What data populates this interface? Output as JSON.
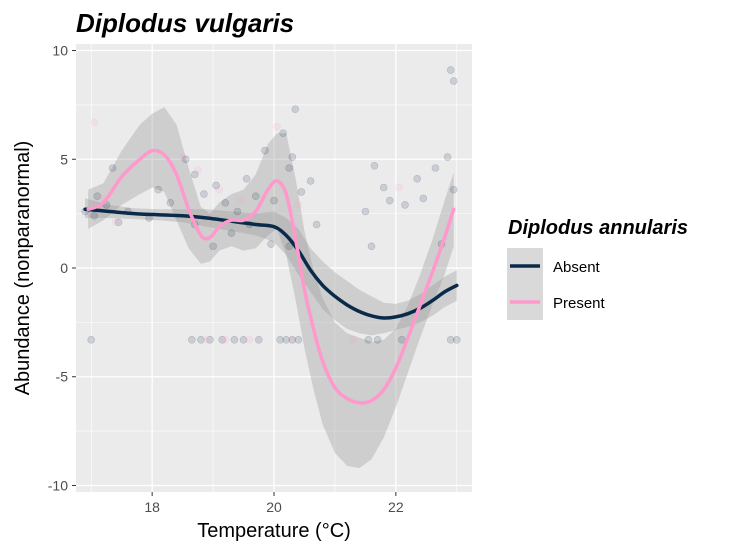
{
  "chart_data": {
    "type": "scatter",
    "title": "Diplodus vulgaris",
    "xlabel": "Temperature (°C)",
    "ylabel": "Abundance (nonparanormal)",
    "xlim": [
      16.75,
      23.25
    ],
    "ylim": [
      -10.3,
      10.3
    ],
    "x_ticks": [
      18,
      20,
      22
    ],
    "x_tick_labels": [
      "18",
      "20",
      "22"
    ],
    "y_ticks": [
      -10,
      -5,
      0,
      5,
      10
    ],
    "y_tick_labels": [
      "-10",
      "-5",
      "0",
      "5",
      "10"
    ],
    "grid": true,
    "legend": {
      "title": "Diplodus annularis",
      "position": "right",
      "entries": [
        {
          "label": "Absent",
          "color": "#0b2a4a"
        },
        {
          "label": "Present",
          "color": "#ff99cc"
        }
      ]
    },
    "series": [
      {
        "name": "Absent",
        "color": "#0b2a4a",
        "x": [
          16.9,
          17.3,
          17.7,
          18.1,
          18.5,
          18.9,
          19.3,
          19.7,
          20.0,
          20.2,
          20.4,
          20.6,
          20.8,
          21.0,
          21.2,
          21.4,
          21.6,
          21.8,
          22.0,
          22.2,
          22.4,
          22.6,
          22.8,
          23.0
        ],
        "y": [
          2.7,
          2.6,
          2.5,
          2.45,
          2.4,
          2.3,
          2.15,
          2.0,
          1.9,
          1.5,
          0.8,
          -0.1,
          -0.8,
          -1.3,
          -1.7,
          -2.0,
          -2.2,
          -2.3,
          -2.25,
          -2.1,
          -1.85,
          -1.5,
          -1.1,
          -0.8
        ],
        "ci_lower": [
          2.3,
          2.3,
          2.25,
          2.2,
          2.1,
          1.9,
          1.7,
          1.5,
          1.2,
          0.6,
          -0.3,
          -1.1,
          -1.9,
          -2.4,
          -2.8,
          -3.0,
          -3.1,
          -3.0,
          -2.85,
          -2.7,
          -2.5,
          -2.2,
          -1.8,
          -1.5
        ],
        "ci_upper": [
          3.2,
          2.9,
          2.75,
          2.7,
          2.7,
          2.7,
          2.6,
          2.5,
          2.6,
          2.3,
          1.8,
          0.9,
          0.3,
          -0.2,
          -0.6,
          -1.0,
          -1.3,
          -1.6,
          -1.65,
          -1.5,
          -1.2,
          -0.8,
          -0.4,
          -0.1
        ],
        "points_x": [
          16.9,
          17.05,
          17.1,
          17.25,
          17.35,
          17.45,
          17.6,
          17.95,
          18.1,
          18.3,
          18.55,
          18.7,
          18.85,
          19.05,
          19.2,
          19.4,
          19.55,
          19.7,
          19.85,
          20.0,
          20.15,
          20.25,
          20.35,
          20.45,
          20.6,
          21.5,
          21.65,
          21.8,
          21.9,
          22.15,
          22.35,
          22.45,
          22.65,
          22.75,
          22.85,
          22.95,
          17.0,
          18.65,
          18.8,
          18.95,
          19.15,
          19.35,
          19.5,
          19.75,
          20.1,
          20.2,
          20.3,
          20.4,
          21.55,
          21.7,
          22.1,
          22.9,
          23.0,
          18.7,
          19.0,
          19.3,
          19.6,
          19.95,
          20.25,
          20.3,
          20.7,
          21.6,
          22.95,
          22.9
        ],
        "points_y": [
          2.6,
          2.4,
          3.3,
          2.9,
          4.6,
          2.1,
          2.6,
          2.3,
          3.6,
          3.0,
          5.0,
          4.3,
          3.4,
          3.8,
          3.0,
          2.6,
          4.1,
          3.3,
          5.4,
          3.1,
          6.2,
          4.6,
          7.3,
          3.5,
          4.0,
          2.6,
          4.7,
          3.7,
          3.1,
          2.9,
          4.1,
          3.2,
          4.6,
          1.1,
          5.1,
          3.6,
          -3.3,
          -3.3,
          -3.3,
          -3.3,
          -3.3,
          -3.3,
          -3.3,
          -3.3,
          -3.3,
          -3.3,
          -3.3,
          -3.3,
          -3.3,
          -3.3,
          -3.3,
          -3.3,
          -3.3,
          2.0,
          1.0,
          1.6,
          2.0,
          1.1,
          1.0,
          5.1,
          2.0,
          1.0,
          8.6,
          9.1
        ]
      },
      {
        "name": "Present",
        "color": "#ff99cc",
        "x": [
          16.95,
          17.2,
          17.5,
          17.8,
          18.0,
          18.2,
          18.4,
          18.6,
          18.8,
          18.95,
          19.1,
          19.3,
          19.5,
          19.7,
          19.9,
          20.05,
          20.2,
          20.35,
          20.5,
          20.65,
          20.8,
          21.0,
          21.2,
          21.4,
          21.6,
          21.8,
          22.0,
          22.2,
          22.4,
          22.6,
          22.8,
          22.95
        ],
        "y": [
          2.7,
          3.0,
          4.2,
          5.0,
          5.4,
          5.2,
          4.3,
          2.7,
          1.5,
          1.4,
          1.9,
          2.2,
          2.2,
          2.6,
          3.6,
          4.0,
          3.4,
          1.4,
          -1.0,
          -2.8,
          -4.3,
          -5.5,
          -6.0,
          -6.2,
          -6.1,
          -5.6,
          -4.6,
          -3.2,
          -1.7,
          -0.2,
          1.4,
          2.7
        ],
        "ci_lower": [
          1.8,
          2.2,
          2.9,
          3.4,
          3.7,
          3.5,
          2.2,
          0.9,
          0.2,
          0.3,
          0.8,
          1.0,
          0.8,
          0.9,
          1.5,
          1.8,
          0.6,
          -1.4,
          -3.7,
          -5.6,
          -7.2,
          -8.5,
          -9.1,
          -9.2,
          -8.8,
          -7.8,
          -6.4,
          -4.8,
          -3.2,
          -1.7,
          -0.3,
          1.0
        ],
        "ci_upper": [
          3.6,
          3.9,
          5.4,
          6.6,
          7.1,
          7.4,
          6.6,
          4.6,
          2.8,
          2.5,
          3.0,
          3.4,
          3.6,
          4.3,
          5.7,
          6.2,
          6.2,
          4.2,
          1.7,
          -0.1,
          -1.4,
          -2.5,
          -3.0,
          -3.2,
          -3.4,
          -3.3,
          -2.8,
          -1.7,
          -0.3,
          1.3,
          3.1,
          4.4
        ],
        "points_x": [
          17.05,
          17.2,
          17.4,
          18.5,
          18.75,
          19.1,
          19.45,
          20.05,
          20.4,
          21.3,
          22.05,
          18.9,
          19.2,
          19.6,
          20.3
        ],
        "points_y": [
          6.7,
          3.2,
          2.1,
          5.1,
          4.5,
          3.6,
          3.1,
          6.5,
          2.9,
          -3.3,
          3.7,
          -3.3,
          -3.3,
          -3.3,
          -3.3
        ]
      }
    ]
  }
}
